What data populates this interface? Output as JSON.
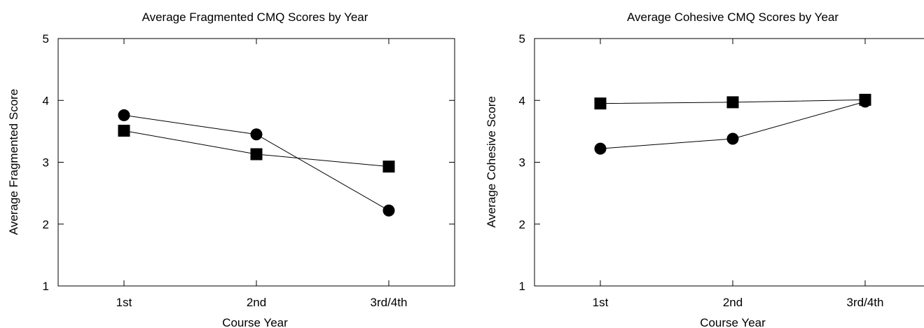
{
  "chart_data": [
    {
      "type": "line",
      "title": "Average Fragmented CMQ Scores by Year",
      "xlabel": "Course Year",
      "ylabel": "Average Fragmented Score",
      "categories": [
        "1st",
        "2nd",
        "3rd/4th"
      ],
      "ylim": [
        1,
        5
      ],
      "yticks": [
        "1",
        "2",
        "3",
        "4",
        "5"
      ],
      "grid": false,
      "legend": "none",
      "series": [
        {
          "marker": "circle",
          "values": [
            3.76,
            3.45,
            2.22
          ]
        },
        {
          "marker": "square",
          "values": [
            3.51,
            3.13,
            2.93
          ]
        }
      ]
    },
    {
      "type": "line",
      "title": "Average Cohesive CMQ Scores by Year",
      "xlabel": "Course Year",
      "ylabel": "Average Cohesive Score",
      "categories": [
        "1st",
        "2nd",
        "3rd/4th"
      ],
      "ylim": [
        1,
        5
      ],
      "yticks": [
        "1",
        "2",
        "3",
        "4",
        "5"
      ],
      "grid": false,
      "legend": "none",
      "series": [
        {
          "marker": "circle",
          "values": [
            3.22,
            3.38,
            3.98
          ]
        },
        {
          "marker": "square",
          "values": [
            3.95,
            3.97,
            4.01
          ]
        }
      ]
    }
  ]
}
